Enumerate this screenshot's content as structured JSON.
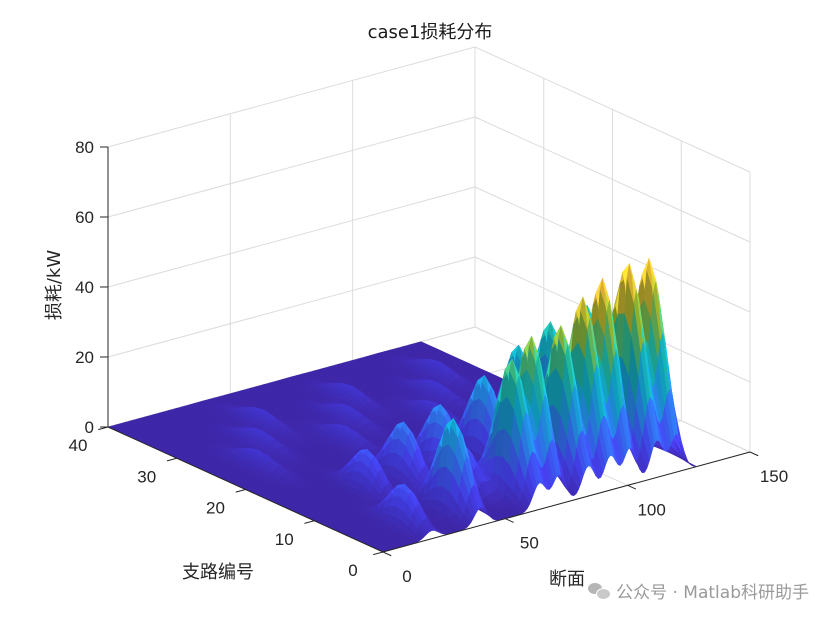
{
  "chart_data": {
    "type": "surface3d",
    "title": "case1损耗分布",
    "xlabel": "断面",
    "ylabel": "支路编号",
    "zlabel": "损耗/kW",
    "xlim": [
      0,
      150
    ],
    "ylim": [
      0,
      40
    ],
    "zlim": [
      0,
      80
    ],
    "xticks": [
      "0",
      "50",
      "100",
      "150"
    ],
    "yticks": [
      "0",
      "10",
      "20",
      "30",
      "40"
    ],
    "zticks": [
      "0",
      "20",
      "40",
      "60",
      "80"
    ],
    "colormap": [
      "#3e26a8",
      "#4743f8",
      "#2f84fa",
      "#10b1d5",
      "#27c5a2",
      "#a5c12d",
      "#f5be3a",
      "#f9fb15"
    ],
    "peaks": [
      {
        "x": 120,
        "y": 4,
        "z": 57
      },
      {
        "x": 112,
        "y": 4,
        "z": 55
      },
      {
        "x": 101,
        "y": 4,
        "z": 55
      },
      {
        "x": 93,
        "y": 4,
        "z": 51
      },
      {
        "x": 84,
        "y": 4,
        "z": 45
      },
      {
        "x": 72,
        "y": 4,
        "z": 44
      },
      {
        "x": 64,
        "y": 4,
        "z": 39
      },
      {
        "x": 40,
        "y": 4,
        "z": 27
      },
      {
        "x": 120,
        "y": 13,
        "z": 36
      },
      {
        "x": 105,
        "y": 13,
        "z": 34
      },
      {
        "x": 92,
        "y": 13,
        "z": 30
      },
      {
        "x": 78,
        "y": 13,
        "z": 24
      },
      {
        "x": 60,
        "y": 13,
        "z": 19
      },
      {
        "x": 45,
        "y": 13,
        "z": 17
      },
      {
        "x": 30,
        "y": 13,
        "z": 12
      },
      {
        "x": 20,
        "y": 4,
        "z": 12
      },
      {
        "x": 110,
        "y": 8,
        "z": 14
      },
      {
        "x": 55,
        "y": 8,
        "z": 13
      }
    ]
  },
  "watermark": "公众号 · Matlab科研助手"
}
